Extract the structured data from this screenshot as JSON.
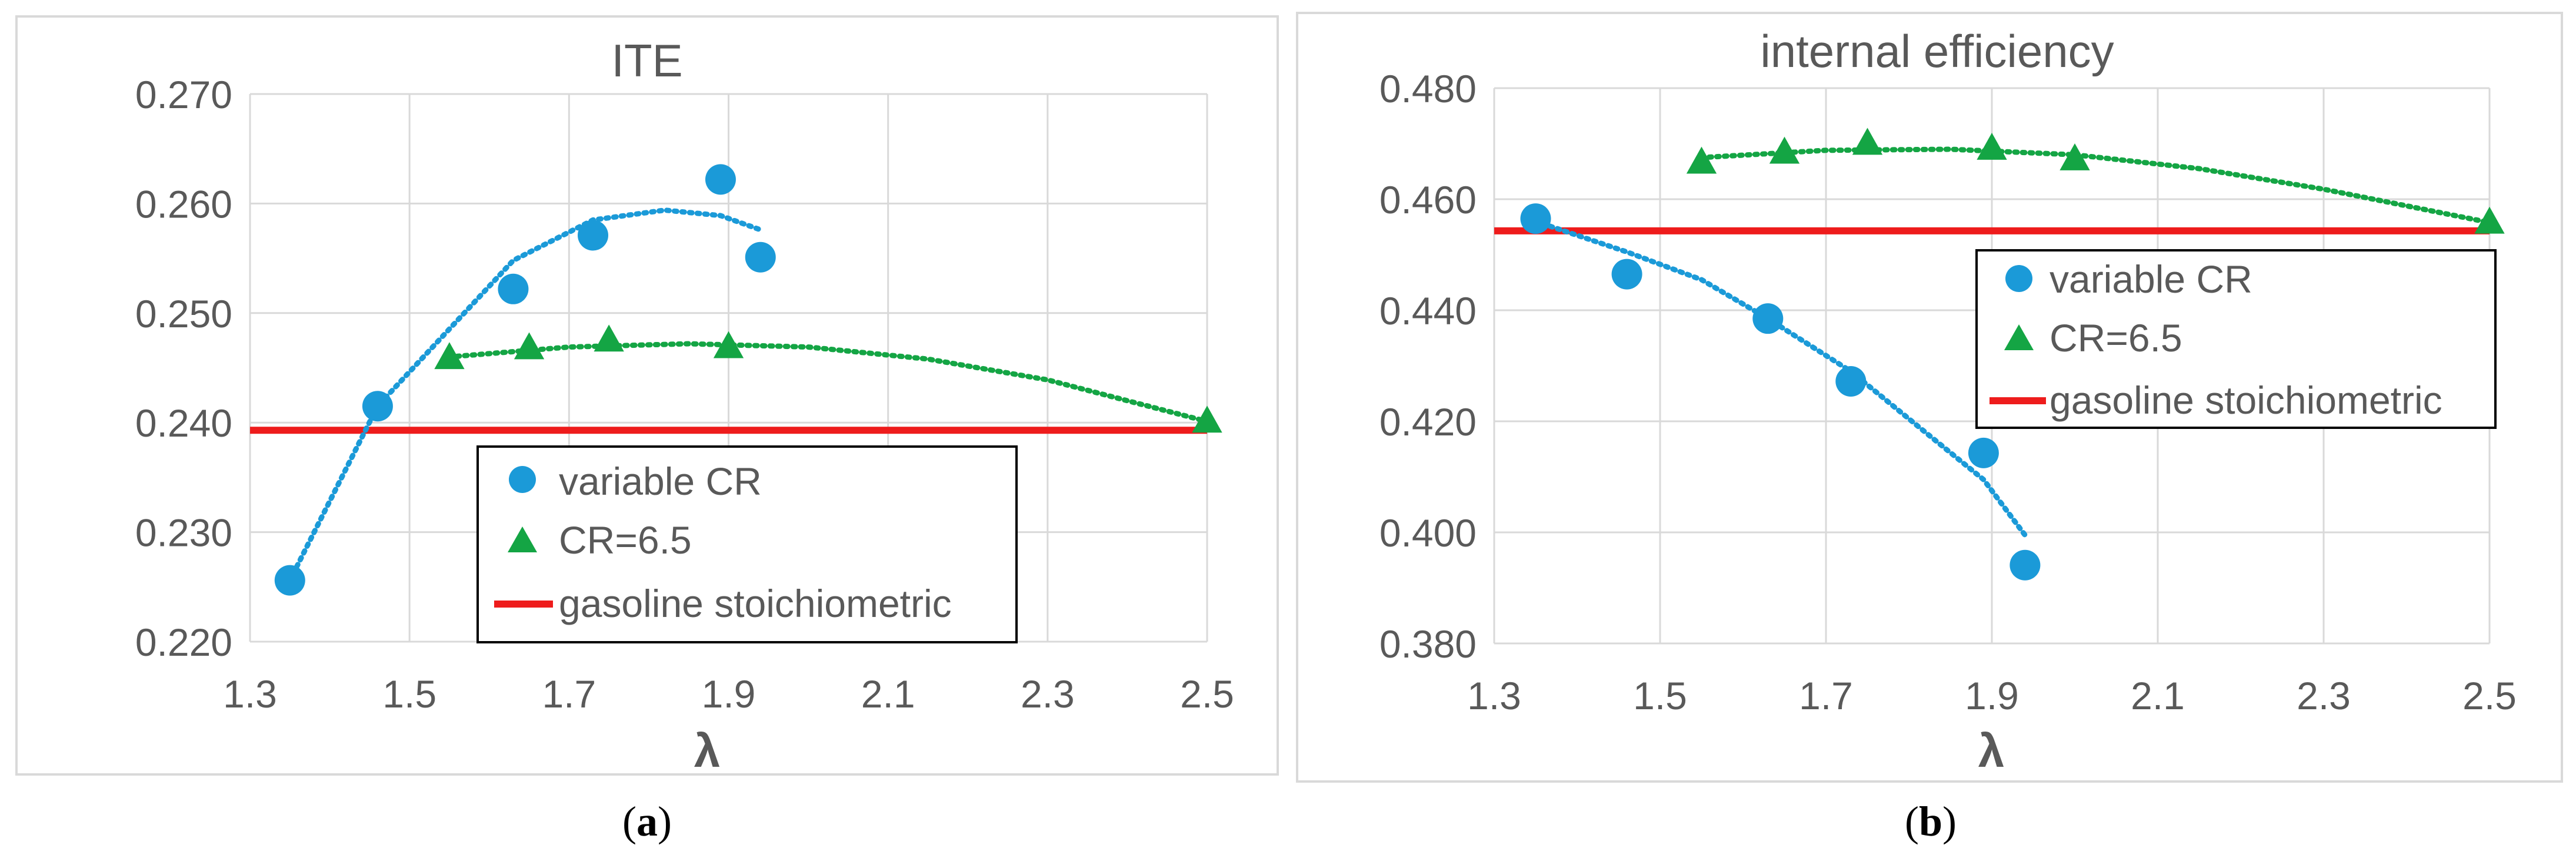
{
  "figure": {
    "panels": [
      {
        "id": "a",
        "caption_open": "(",
        "caption_letter": "a",
        "caption_close": ")"
      },
      {
        "id": "b",
        "caption_open": "(",
        "caption_letter": "b",
        "caption_close": ")"
      }
    ]
  },
  "colors": {
    "variable_cr": "#1B9AD8",
    "cr_6_5": "#14A544",
    "gasoline": "#EE1C1C",
    "grid": "#D9D9D9",
    "text": "#595959",
    "border": "#D9D9D9"
  },
  "chart_data": [
    {
      "type": "scatter",
      "panel": "a",
      "title": "ITE",
      "xlabel": "λ",
      "ylabel": "",
      "xlim": [
        1.3,
        2.5
      ],
      "ylim": [
        0.22,
        0.27
      ],
      "x_ticks": [
        "1.3",
        "1.5",
        "1.7",
        "1.9",
        "2.1",
        "2.3",
        "2.5"
      ],
      "y_ticks": [
        "0.220",
        "0.230",
        "0.240",
        "0.250",
        "0.260",
        "0.270"
      ],
      "grid": true,
      "legend_position": "bottom-center",
      "series": [
        {
          "name": "variable CR",
          "marker": "circle",
          "points": [
            [
              1.35,
              0.2256
            ],
            [
              1.46,
              0.2415
            ],
            [
              1.63,
              0.2522
            ],
            [
              1.73,
              0.2571
            ],
            [
              1.89,
              0.2622
            ],
            [
              1.94,
              0.2551
            ]
          ],
          "trendline": {
            "x_range": [
              1.35,
              1.94
            ],
            "points": [
              [
                1.35,
                0.2256
              ],
              [
                1.46,
                0.2415
              ],
              [
                1.63,
                0.2548
              ],
              [
                1.73,
                0.2585
              ],
              [
                1.82,
                0.2594
              ],
              [
                1.89,
                0.2589
              ],
              [
                1.94,
                0.2576
              ]
            ]
          }
        },
        {
          "name": "CR=6.5",
          "marker": "triangle",
          "points": [
            [
              1.55,
              0.2459
            ],
            [
              1.65,
              0.2468
            ],
            [
              1.75,
              0.2475
            ],
            [
              1.9,
              0.2469
            ],
            [
              2.5,
              0.2401
            ]
          ],
          "trendline": {
            "x_range": [
              1.55,
              2.5
            ],
            "points": [
              [
                1.55,
                0.246
              ],
              [
                1.7,
                0.2469
              ],
              [
                1.85,
                0.2472
              ],
              [
                2.0,
                0.2469
              ],
              [
                2.15,
                0.2458
              ],
              [
                2.3,
                0.2439
              ],
              [
                2.5,
                0.2401
              ]
            ]
          }
        },
        {
          "name": "gasoline stoichiometric",
          "marker": "line",
          "y": 0.2393
        }
      ]
    },
    {
      "type": "scatter",
      "panel": "b",
      "title": "internal efficiency",
      "xlabel": "λ",
      "ylabel": "",
      "xlim": [
        1.3,
        2.5
      ],
      "ylim": [
        0.38,
        0.48
      ],
      "x_ticks": [
        "1.3",
        "1.5",
        "1.7",
        "1.9",
        "2.1",
        "2.3",
        "2.5"
      ],
      "y_ticks": [
        "0.380",
        "0.400",
        "0.420",
        "0.440",
        "0.460",
        "0.480"
      ],
      "grid": true,
      "legend_position": "center-right",
      "series": [
        {
          "name": "variable CR",
          "marker": "circle",
          "points": [
            [
              1.35,
              0.4565
            ],
            [
              1.46,
              0.4465
            ],
            [
              1.63,
              0.4385
            ],
            [
              1.73,
              0.4272
            ],
            [
              1.89,
              0.4143
            ],
            [
              1.94,
              0.3941
            ]
          ],
          "trendline": {
            "x_range": [
              1.35,
              1.94
            ],
            "points": [
              [
                1.35,
                0.456
              ],
              [
                1.46,
                0.4505
              ],
              [
                1.55,
                0.4455
              ],
              [
                1.63,
                0.4385
              ],
              [
                1.73,
                0.429
              ],
              [
                1.82,
                0.418
              ],
              [
                1.89,
                0.4095
              ],
              [
                1.94,
                0.3995
              ]
            ]
          }
        },
        {
          "name": "CR=6.5",
          "marker": "triangle",
          "points": [
            [
              1.55,
              0.4666
            ],
            [
              1.65,
              0.4684
            ],
            [
              1.75,
              0.47
            ],
            [
              1.9,
              0.4691
            ],
            [
              2.0,
              0.4672
            ],
            [
              2.5,
              0.4558
            ]
          ],
          "trendline": {
            "x_range": [
              1.55,
              2.5
            ],
            "points": [
              [
                1.55,
                0.4675
              ],
              [
                1.7,
                0.4688
              ],
              [
                1.85,
                0.469
              ],
              [
                2.0,
                0.468
              ],
              [
                2.15,
                0.4655
              ],
              [
                2.3,
                0.4618
              ],
              [
                2.5,
                0.4558
              ]
            ]
          }
        },
        {
          "name": "gasoline stoichiometric",
          "marker": "line",
          "y": 0.4543
        }
      ]
    }
  ]
}
